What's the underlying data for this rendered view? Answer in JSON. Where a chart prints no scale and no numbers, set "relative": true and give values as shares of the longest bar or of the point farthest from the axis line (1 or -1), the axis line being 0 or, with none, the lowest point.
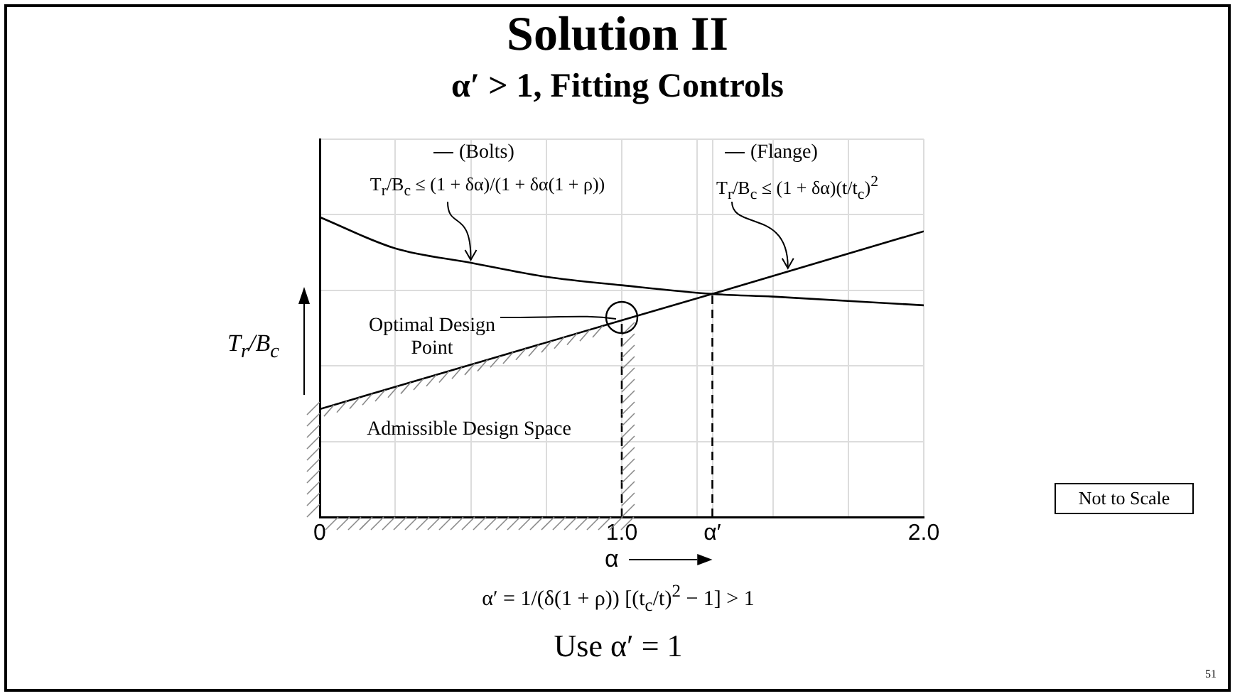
{
  "chart_data": {
    "type": "line",
    "title": "Solution II",
    "subtitle": "α′ > 1, Fitting Controls",
    "xlabel": "α",
    "ylabel": "T$_{r}$/B$_{c}$",
    "relative": true,
    "xlim": [
      0,
      2
    ],
    "xticks": [
      0,
      {
        "value": 0.25,
        "label": null
      },
      {
        "value": 0.5,
        "label": null
      },
      {
        "value": 0.75,
        "label": null
      },
      {
        "value": 1,
        "label": "1.0"
      },
      {
        "value": 1.25,
        "label": null
      },
      {
        "value": 1.3,
        "label": "α′"
      },
      {
        "value": 1.5,
        "label": null
      },
      {
        "value": 1.75,
        "label": null
      },
      {
        "value": 2,
        "label": "2.0"
      }
    ],
    "grid": true,
    "legend": "top",
    "series": [
      {
        "name": "(Bolts)",
        "color": "#000000",
        "x": [
          0,
          0.25,
          0.5,
          0.75,
          1,
          1.3,
          1.5,
          2
        ],
        "values": [
          1,
          0.896,
          0.848,
          0.801,
          0.773,
          0.744,
          0.735,
          0.706
        ]
      },
      {
        "name": "(Flange)",
        "color": "#000000",
        "x": [
          0,
          1,
          1.3,
          2
        ],
        "values": [
          0.36,
          0.656,
          0.744,
          0.953
        ]
      }
    ],
    "ref_lines": [
      {
        "axis": "x",
        "value": 1,
        "line_style": "dashed",
        "color": "#000000"
      },
      {
        "axis": "x",
        "value": 1.3,
        "line_style": "dashed",
        "color": "#000000"
      }
    ],
    "annotations": [
      {
        "text": "T$_{r}$/B$_{c}$ ≤ (1 + δα)/(1 + δα(1 + ρ))",
        "x": 0.5,
        "y": 0.848
      },
      {
        "text": "T$_{r}$/B$_{c}$ ≤ (1 + δα)(t/t$_{c}$)$^{2}$",
        "x": 1.55,
        "y": 0.82
      },
      {
        "text": "Optimal Design Point",
        "x": 1,
        "y": 0.656
      },
      "Admissible Design Space",
      "Not to Scale",
      "α′ = 1/(δ(1 + ρ)) [(t$_{c}$/t)$^{2}$ − 1] > 1",
      "Use α′ = 1",
      "51"
    ]
  }
}
